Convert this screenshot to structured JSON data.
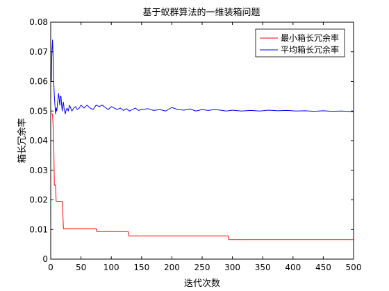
{
  "chart_data": {
    "type": "line",
    "title": "基于蚁群算法的一维装箱问题",
    "xlabel": "迭代次数",
    "ylabel": "箱长冗余率",
    "xlim": [
      0,
      500
    ],
    "ylim": [
      0,
      0.08
    ],
    "xticks": [
      "0",
      "50",
      "100",
      "150",
      "200",
      "250",
      "300",
      "350",
      "400",
      "450",
      "500"
    ],
    "yticks": [
      "0",
      "0.01",
      "0.02",
      "0.03",
      "0.04",
      "0.05",
      "0.06",
      "0.07",
      "0.08"
    ],
    "grid": false,
    "legend_position": "top-right",
    "series": [
      {
        "name": "最小箱长冗余率",
        "color": "#ff0000",
        "x": [
          1,
          3,
          5,
          6,
          7,
          8,
          9,
          10,
          11,
          19,
          20,
          21,
          22,
          75,
          76,
          128,
          129,
          293,
          294,
          500
        ],
        "y": [
          0.049,
          0.049,
          0.04,
          0.025,
          0.025,
          0.025,
          0.0195,
          0.0195,
          0.0195,
          0.0195,
          0.0155,
          0.0103,
          0.0103,
          0.0103,
          0.0093,
          0.0093,
          0.0078,
          0.0078,
          0.0066,
          0.0066
        ]
      },
      {
        "name": "平均箱长冗余率",
        "color": "#0000ff",
        "x": [
          1,
          2,
          3,
          4,
          5,
          6,
          7,
          8,
          9,
          10,
          11,
          12,
          13,
          14,
          15,
          16,
          17,
          18,
          19,
          20,
          21,
          22,
          23,
          24,
          25,
          27,
          29,
          31,
          33,
          35,
          38,
          41,
          44,
          47,
          50,
          55,
          60,
          65,
          70,
          75,
          80,
          85,
          90,
          95,
          100,
          105,
          110,
          115,
          120,
          125,
          130,
          135,
          140,
          145,
          150,
          160,
          170,
          180,
          190,
          200,
          210,
          220,
          230,
          240,
          250,
          260,
          270,
          280,
          290,
          300,
          315,
          330,
          345,
          360,
          375,
          390,
          405,
          420,
          435,
          450,
          465,
          480,
          490,
          500
        ],
        "y": [
          0.06,
          0.07,
          0.074,
          0.068,
          0.06,
          0.055,
          0.052,
          0.049,
          0.051,
          0.05,
          0.052,
          0.054,
          0.056,
          0.054,
          0.052,
          0.055,
          0.055,
          0.052,
          0.05,
          0.052,
          0.053,
          0.051,
          0.05,
          0.049,
          0.05,
          0.051,
          0.05,
          0.052,
          0.051,
          0.05,
          0.051,
          0.0515,
          0.0505,
          0.051,
          0.052,
          0.051,
          0.052,
          0.051,
          0.0505,
          0.052,
          0.0515,
          0.052,
          0.0512,
          0.0505,
          0.0515,
          0.051,
          0.0505,
          0.051,
          0.0502,
          0.0508,
          0.05,
          0.0505,
          0.051,
          0.0502,
          0.0505,
          0.0508,
          0.0502,
          0.0505,
          0.05,
          0.0512,
          0.0505,
          0.0503,
          0.0507,
          0.05,
          0.0505,
          0.0502,
          0.0505,
          0.0503,
          0.05,
          0.0503,
          0.05,
          0.0502,
          0.05,
          0.0503,
          0.0501,
          0.0502,
          0.05,
          0.0501,
          0.0499,
          0.0501,
          0.0499,
          0.05,
          0.0499,
          0.0497
        ]
      }
    ]
  }
}
